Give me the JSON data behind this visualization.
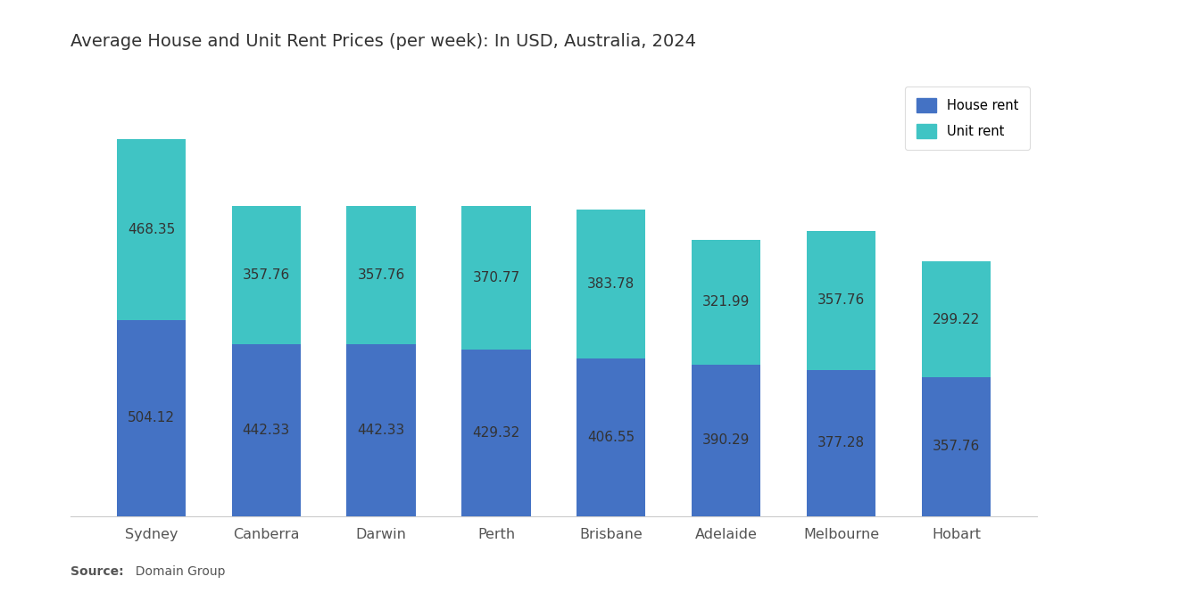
{
  "title": "Average House and Unit Rent Prices (per week): In USD, Australia, 2024",
  "cities": [
    "Sydney",
    "Canberra",
    "Darwin",
    "Perth",
    "Brisbane",
    "Adelaide",
    "Melbourne",
    "Hobart"
  ],
  "house_rent": [
    504.12,
    442.33,
    442.33,
    429.32,
    406.55,
    390.29,
    377.28,
    357.76
  ],
  "unit_rent": [
    468.35,
    357.76,
    357.76,
    370.77,
    383.78,
    321.99,
    357.76,
    299.22
  ],
  "house_color": "#4472C4",
  "unit_color": "#40C4C4",
  "background_color": "#FFFFFF",
  "title_fontsize": 14,
  "label_fontsize": 11,
  "tick_fontsize": 11.5,
  "legend_labels": [
    "House rent",
    "Unit rent"
  ],
  "source_bold": "Source:",
  "source_rest": "  Domain Group",
  "bar_width": 0.6
}
